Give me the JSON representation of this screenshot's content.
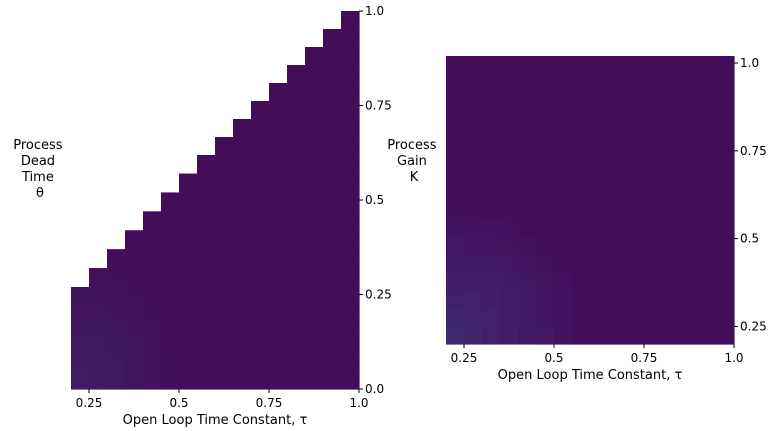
{
  "chart_data": [
    {
      "type": "heatmap",
      "title": "",
      "xlabel": "Open Loop Time Constant, τ",
      "ylabel_lines": [
        "Process",
        "Dead",
        "Time",
        "θ"
      ],
      "xlim": [
        0.2,
        1.0
      ],
      "ylim": [
        0.0,
        1.0
      ],
      "x_ticks": [
        {
          "value": 0.25,
          "label": "0.25"
        },
        {
          "value": 0.5,
          "label": "0.5"
        },
        {
          "value": 0.75,
          "label": "0.75"
        },
        {
          "value": 1.0,
          "label": "1.0"
        }
      ],
      "y_ticks": [
        {
          "value": 0.0,
          "label": "0.0"
        },
        {
          "value": 0.25,
          "label": "0.25"
        },
        {
          "value": 0.5,
          "label": "0.5"
        },
        {
          "value": 0.75,
          "label": "0.75"
        },
        {
          "value": 1.0,
          "label": "1.0"
        }
      ],
      "y_tick_side": "right",
      "grid": false,
      "colormap": "viridis",
      "cell_colors": {
        "near_origin": "#3d1e63",
        "background": "#440d5a"
      },
      "columns": [
        {
          "tau_min": 0.2,
          "tau_max": 0.25,
          "theta_max": 0.27
        },
        {
          "tau_min": 0.25,
          "tau_max": 0.3,
          "theta_max": 0.32
        },
        {
          "tau_min": 0.3,
          "tau_max": 0.35,
          "theta_max": 0.37
        },
        {
          "tau_min": 0.35,
          "tau_max": 0.4,
          "theta_max": 0.42
        },
        {
          "tau_min": 0.4,
          "tau_max": 0.45,
          "theta_max": 0.47
        },
        {
          "tau_min": 0.45,
          "tau_max": 0.5,
          "theta_max": 0.52
        },
        {
          "tau_min": 0.5,
          "tau_max": 0.55,
          "theta_max": 0.57
        },
        {
          "tau_min": 0.55,
          "tau_max": 0.6,
          "theta_max": 0.62
        },
        {
          "tau_min": 0.6,
          "tau_max": 0.65,
          "theta_max": 0.67
        },
        {
          "tau_min": 0.65,
          "tau_max": 0.7,
          "theta_max": 0.72
        },
        {
          "tau_min": 0.7,
          "tau_max": 0.75,
          "theta_max": 0.77
        },
        {
          "tau_min": 0.75,
          "tau_max": 0.8,
          "theta_max": 0.82
        },
        {
          "tau_min": 0.8,
          "tau_max": 0.85,
          "theta_max": 0.87
        },
        {
          "tau_min": 0.85,
          "tau_max": 0.9,
          "theta_max": 0.92
        },
        {
          "tau_min": 0.9,
          "tau_max": 0.95,
          "theta_max": 0.97
        },
        {
          "tau_min": 0.95,
          "tau_max": 1.0,
          "theta_max": 1.02
        }
      ]
    },
    {
      "type": "heatmap",
      "title": "",
      "xlabel": "Open Loop Time Constant, τ",
      "ylabel_lines": [
        "Process",
        "Gain",
        "K"
      ],
      "xlim": [
        0.2,
        1.0
      ],
      "ylim": [
        0.2,
        1.02
      ],
      "x_ticks": [
        {
          "value": 0.25,
          "label": "0.25"
        },
        {
          "value": 0.5,
          "label": "0.5"
        },
        {
          "value": 0.75,
          "label": "0.75"
        },
        {
          "value": 1.0,
          "label": "1.0"
        }
      ],
      "y_ticks": [
        {
          "value": 0.25,
          "label": "0.25"
        },
        {
          "value": 0.5,
          "label": "0.5"
        },
        {
          "value": 0.75,
          "label": "0.75"
        },
        {
          "value": 1.0,
          "label": "1.0"
        }
      ],
      "y_tick_side": "right",
      "grid": false,
      "colormap": "viridis",
      "cell_colors": {
        "near_origin": "#3f2a70",
        "background": "#440d5a"
      }
    }
  ]
}
